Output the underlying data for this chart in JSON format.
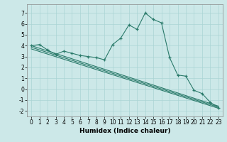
{
  "x": [
    0,
    1,
    2,
    3,
    4,
    5,
    6,
    7,
    8,
    9,
    10,
    11,
    12,
    13,
    14,
    15,
    16,
    17,
    18,
    19,
    20,
    21,
    22,
    23
  ],
  "line1": [
    4.0,
    4.1,
    3.6,
    3.2,
    3.5,
    3.3,
    3.1,
    3.0,
    2.9,
    2.7,
    4.1,
    4.7,
    5.9,
    5.5,
    7.0,
    6.4,
    6.1,
    2.9,
    1.3,
    1.2,
    -0.1,
    -0.4,
    -1.2,
    -1.7
  ],
  "straight_lines": [
    [
      [
        0,
        23
      ],
      [
        4.0,
        -1.55
      ]
    ],
    [
      [
        0,
        23
      ],
      [
        3.85,
        -1.65
      ]
    ],
    [
      [
        0,
        23
      ],
      [
        3.7,
        -1.75
      ]
    ]
  ],
  "background_color": "#cce8e8",
  "line_color": "#2a7a6a",
  "grid_major_color": "#aad4d4",
  "grid_minor_color": "#bbdddd",
  "xlabel": "Humidex (Indice chaleur)",
  "ylim": [
    -2.5,
    7.8
  ],
  "xlim": [
    -0.5,
    23.5
  ],
  "yticks": [
    -2,
    -1,
    0,
    1,
    2,
    3,
    4,
    5,
    6,
    7
  ],
  "xticks": [
    0,
    1,
    2,
    3,
    4,
    5,
    6,
    7,
    8,
    9,
    10,
    11,
    12,
    13,
    14,
    15,
    16,
    17,
    18,
    19,
    20,
    21,
    22,
    23
  ],
  "xlabel_fontsize": 6.5,
  "tick_fontsize": 5.5
}
